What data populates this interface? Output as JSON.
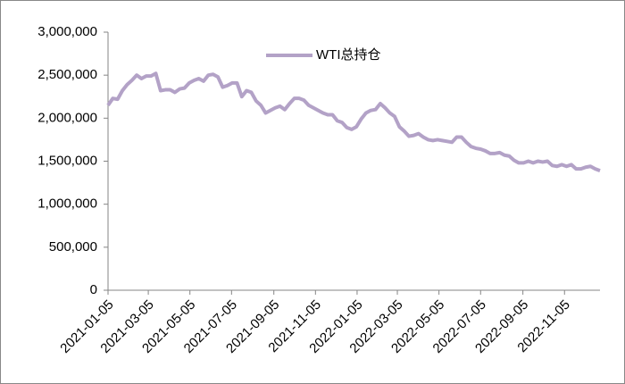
{
  "chart_data": {
    "type": "line",
    "x": [
      "2021-01-05",
      "2021-01-12",
      "2021-01-19",
      "2021-01-26",
      "2021-02-02",
      "2021-02-09",
      "2021-02-16",
      "2021-02-23",
      "2021-03-02",
      "2021-03-09",
      "2021-03-16",
      "2021-03-23",
      "2021-03-30",
      "2021-04-06",
      "2021-04-13",
      "2021-04-20",
      "2021-04-27",
      "2021-05-04",
      "2021-05-11",
      "2021-05-18",
      "2021-05-25",
      "2021-06-01",
      "2021-06-08",
      "2021-06-15",
      "2021-06-22",
      "2021-06-29",
      "2021-07-06",
      "2021-07-13",
      "2021-07-20",
      "2021-07-27",
      "2021-08-03",
      "2021-08-10",
      "2021-08-17",
      "2021-08-24",
      "2021-08-31",
      "2021-09-07",
      "2021-09-14",
      "2021-09-21",
      "2021-09-28",
      "2021-10-05",
      "2021-10-12",
      "2021-10-19",
      "2021-10-26",
      "2021-11-02",
      "2021-11-09",
      "2021-11-16",
      "2021-11-23",
      "2021-11-30",
      "2021-12-07",
      "2021-12-14",
      "2021-12-21",
      "2021-12-28",
      "2022-01-04",
      "2022-01-11",
      "2022-01-18",
      "2022-01-25",
      "2022-02-01",
      "2022-02-08",
      "2022-02-15",
      "2022-02-22",
      "2022-03-01",
      "2022-03-08",
      "2022-03-15",
      "2022-03-22",
      "2022-03-29",
      "2022-04-05",
      "2022-04-12",
      "2022-04-19",
      "2022-04-26",
      "2022-05-03",
      "2022-05-10",
      "2022-05-17",
      "2022-05-24",
      "2022-05-31",
      "2022-06-07",
      "2022-06-14",
      "2022-06-21",
      "2022-06-28",
      "2022-07-05",
      "2022-07-12",
      "2022-07-19",
      "2022-07-26",
      "2022-08-02",
      "2022-08-09",
      "2022-08-16",
      "2022-08-23",
      "2022-08-30",
      "2022-09-06",
      "2022-09-13",
      "2022-09-20",
      "2022-09-27",
      "2022-10-04",
      "2022-10-11",
      "2022-10-18",
      "2022-10-25",
      "2022-11-01",
      "2022-11-08",
      "2022-11-15",
      "2022-11-22",
      "2022-11-29",
      "2022-12-06",
      "2022-12-13",
      "2022-12-20",
      "2022-12-27"
    ],
    "series": [
      {
        "name": "WTI总持仓",
        "color": "#b3a2c7",
        "values": [
          2150000,
          2230000,
          2220000,
          2320000,
          2390000,
          2440000,
          2500000,
          2460000,
          2490000,
          2490000,
          2520000,
          2320000,
          2330000,
          2330000,
          2300000,
          2340000,
          2350000,
          2410000,
          2440000,
          2460000,
          2430000,
          2500000,
          2510000,
          2480000,
          2360000,
          2380000,
          2410000,
          2410000,
          2250000,
          2320000,
          2300000,
          2200000,
          2150000,
          2060000,
          2090000,
          2120000,
          2140000,
          2100000,
          2170000,
          2230000,
          2230000,
          2210000,
          2150000,
          2120000,
          2090000,
          2060000,
          2040000,
          2040000,
          1970000,
          1950000,
          1890000,
          1870000,
          1900000,
          1990000,
          2060000,
          2090000,
          2100000,
          2170000,
          2120000,
          2060000,
          2020000,
          1900000,
          1850000,
          1790000,
          1800000,
          1820000,
          1780000,
          1750000,
          1740000,
          1750000,
          1740000,
          1730000,
          1720000,
          1780000,
          1780000,
          1720000,
          1670000,
          1650000,
          1640000,
          1620000,
          1590000,
          1590000,
          1600000,
          1570000,
          1560000,
          1510000,
          1480000,
          1480000,
          1500000,
          1480000,
          1500000,
          1490000,
          1500000,
          1450000,
          1440000,
          1460000,
          1440000,
          1460000,
          1410000,
          1410000,
          1430000,
          1440000,
          1410000,
          1390000
        ]
      }
    ],
    "xlim": [
      "2021-01-05",
      "2022-12-27"
    ],
    "xticks": [
      "2021-01-05",
      "2021-03-05",
      "2021-05-05",
      "2021-07-05",
      "2021-09-05",
      "2021-11-05",
      "2022-01-05",
      "2022-03-05",
      "2022-05-05",
      "2022-07-05",
      "2022-09-05",
      "2022-11-05"
    ],
    "ylim": [
      0,
      3000000
    ],
    "yticks": [
      0,
      {
        "value": 500000,
        "label": "500,000"
      },
      {
        "value": 1000000,
        "label": "1,000,000"
      },
      {
        "value": 1500000,
        "label": "1,500,000"
      },
      {
        "value": 2000000,
        "label": "2,000,000"
      },
      {
        "value": 2500000,
        "label": "2,500,000"
      },
      {
        "value": 3000000,
        "label": "3,000,000"
      }
    ],
    "legend": "top",
    "grid": false
  }
}
